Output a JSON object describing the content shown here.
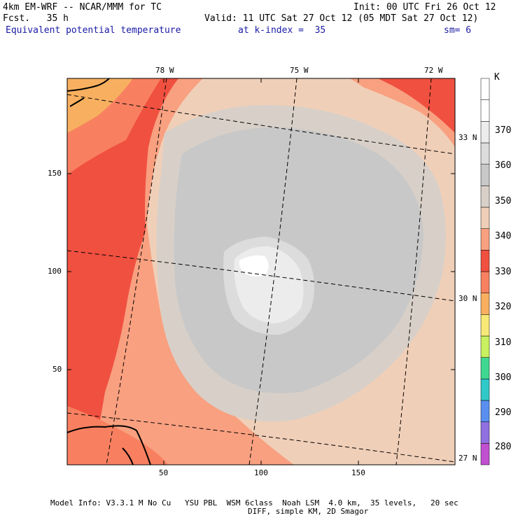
{
  "header": {
    "model_line": "4km EM-WRF -- NCAR/MMM for TC",
    "init_line": "Init: 00 UTC Fri 26 Oct 12",
    "fcst_line": "Fcst.   35 h",
    "valid_line": "Valid: 11 UTC Sat 27 Oct 12 (05 MDT Sat 27 Oct 12)",
    "field_name": "Equivalent potential temperature",
    "level_line": "at k-index =  35",
    "smoothing": "sm= 6"
  },
  "map": {
    "lon_labels": [
      "78 W",
      "75 W",
      "72 W"
    ],
    "lat_labels": [
      "33 N",
      "30 N",
      "27 N"
    ],
    "x_ticks": [
      "50",
      "100",
      "150"
    ],
    "y_ticks": [
      "150",
      "100",
      "50"
    ]
  },
  "colorbar": {
    "unit": "K",
    "levels": [
      "280",
      "290",
      "300",
      "310",
      "320",
      "330",
      "340",
      "350",
      "360",
      "370"
    ],
    "colors": [
      "#c050d0",
      "#9070e0",
      "#5a8ff0",
      "#30c8c8",
      "#40d890",
      "#c8f060",
      "#f8e878",
      "#f8b060",
      "#f88060",
      "#f05040",
      "#f8a080",
      "#f0cfb8",
      "#d8d0c8",
      "#c8c8c8",
      "#dcdcdc",
      "#ececec",
      "#ffffff",
      "#ffffff"
    ]
  },
  "footer": {
    "line1": "Model Info: V3.3.1 M No Cu   YSU PBL  WSM 6class  Noah LSM  4.0 km,  35 levels,   20 sec",
    "line2": "DIFF, simple KM, 2D Smagor"
  }
}
